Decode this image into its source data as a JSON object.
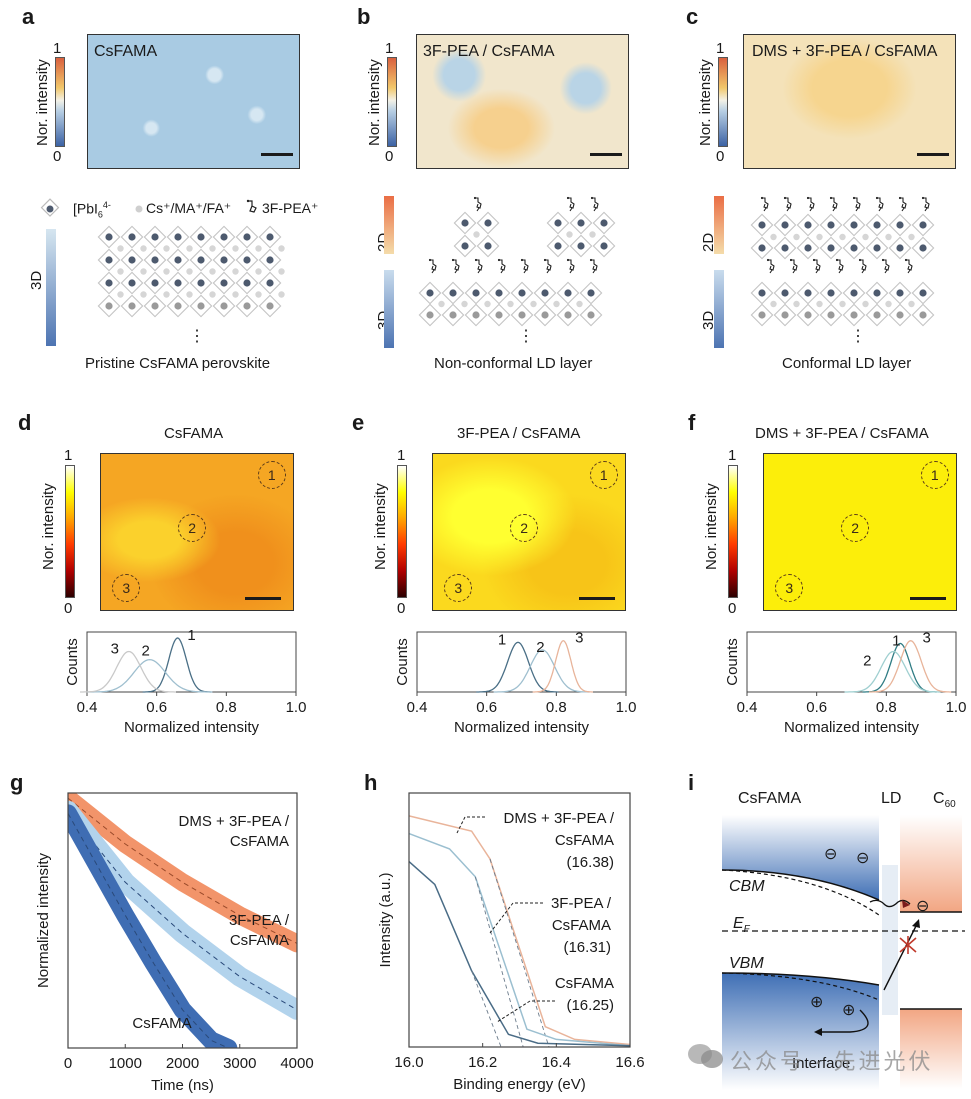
{
  "panels": {
    "a": {
      "label": "a",
      "map_title": "CsFAMA",
      "colorbar_label": "Nor. intensity",
      "colorbar_max": "1",
      "colorbar_min": "0",
      "legend": {
        "pbi6": "[PbI",
        "pbi6_sub": "6",
        "pbi6_sup": "]4-",
        "cations": "Cs⁺/MA⁺/FA⁺",
        "spacer": "3F-PEA⁺"
      },
      "gradient_3d_label": "3D",
      "caption": "Pristine CsFAMA perovskite",
      "ellipsis": "⋮"
    },
    "b": {
      "label": "b",
      "map_title": "3F-PEA / CsFAMA",
      "colorbar_label": "Nor. intensity",
      "colorbar_max": "1",
      "colorbar_min": "0",
      "gradient_2d_label": "2D",
      "gradient_3d_label": "3D",
      "caption": "Non-conformal LD layer",
      "ellipsis": "⋮"
    },
    "c": {
      "label": "c",
      "map_title": "DMS + 3F-PEA / CsFAMA",
      "colorbar_label": "Nor. intensity",
      "colorbar_max": "1",
      "colorbar_min": "0",
      "gradient_2d_label": "2D",
      "gradient_3d_label": "3D",
      "caption": "Conformal LD layer",
      "ellipsis": "⋮"
    },
    "d": {
      "label": "d",
      "title": "CsFAMA",
      "colorbar_label": "Nor. intensity",
      "colorbar_max": "1",
      "colorbar_min": "0",
      "regions": [
        "1",
        "2",
        "3"
      ]
    },
    "e": {
      "label": "e",
      "title": "3F-PEA / CsFAMA",
      "colorbar_label": "Nor. intensity",
      "colorbar_max": "1",
      "colorbar_min": "0",
      "regions": [
        "1",
        "2",
        "3"
      ]
    },
    "f": {
      "label": "f",
      "title": "DMS + 3F-PEA / CsFAMA",
      "colorbar_label": "Nor. intensity",
      "colorbar_max": "1",
      "colorbar_min": "0",
      "regions": [
        "1",
        "2",
        "3"
      ]
    },
    "g": {
      "label": "g"
    },
    "h": {
      "label": "h"
    },
    "i": {
      "label": "i",
      "col_perovskite": "CsFAMA",
      "col_ld": "LD",
      "col_c60": "C",
      "col_c60_sub": "60",
      "cbm": "CBM",
      "vbm": "VBM",
      "ef": "E",
      "ef_sub": "F",
      "interface": "Interface",
      "electron_symbol": "⊖",
      "hole_symbol": "⊕"
    }
  },
  "watermark": {
    "text": "公众号 · 先进光伏"
  },
  "colors": {
    "orange": "#f08a5d",
    "light_blue": "#a8cde8",
    "dark_blue": "#3d6db3",
    "hist_1_d": "#4a6f86",
    "hist_2_d": "#9fbfcf",
    "hist_3_d": "#c8c8c8",
    "hist_orange": "#e8b49a",
    "teal": "#3c8c8c"
  },
  "chart_data": [
    {
      "id": "d-hist",
      "type": "line",
      "title": "",
      "xlabel": "Normalized intensity",
      "ylabel": "Counts",
      "xlim": [
        0.4,
        1.0
      ],
      "xticks": [
        "0.4",
        "0.6",
        "0.8",
        "1.0"
      ],
      "series": [
        {
          "name": "1",
          "peak": 0.66,
          "width": 0.025,
          "height": 1.0
        },
        {
          "name": "2",
          "peak": 0.58,
          "width": 0.045,
          "height": 0.6
        },
        {
          "name": "3",
          "peak": 0.52,
          "width": 0.035,
          "height": 0.75
        }
      ]
    },
    {
      "id": "e-hist",
      "type": "line",
      "xlabel": "Normalized intensity",
      "ylabel": "Counts",
      "xlim": [
        0.4,
        1.0
      ],
      "xticks": [
        "0.4",
        "0.6",
        "0.8",
        "1.0"
      ],
      "series": [
        {
          "name": "1",
          "peak": 0.69,
          "width": 0.03,
          "height": 0.92
        },
        {
          "name": "2",
          "peak": 0.76,
          "width": 0.035,
          "height": 0.78
        },
        {
          "name": "3",
          "peak": 0.82,
          "width": 0.022,
          "height": 0.95
        }
      ]
    },
    {
      "id": "f-hist",
      "type": "line",
      "xlabel": "Normalized intensity",
      "ylabel": "Counts",
      "xlim": [
        0.4,
        1.0
      ],
      "xticks": [
        "0.4",
        "0.6",
        "0.8",
        "1.0"
      ],
      "series": [
        {
          "name": "1",
          "peak": 0.84,
          "width": 0.027,
          "height": 0.9
        },
        {
          "name": "2",
          "peak": 0.82,
          "width": 0.035,
          "height": 0.75
        },
        {
          "name": "3",
          "peak": 0.87,
          "width": 0.03,
          "height": 0.95
        }
      ]
    },
    {
      "id": "g-trpl",
      "type": "line",
      "xlabel": "Time (ns)",
      "ylabel": "Normalized intensity",
      "xlim": [
        0,
        4000
      ],
      "xticks": [
        "0",
        "1000",
        "2000",
        "3000",
        "4000"
      ],
      "ylim": [
        0,
        1
      ],
      "series": [
        {
          "name": "DMS + 3F-PEA / CsFAMA",
          "label_lines": [
            "DMS + 3F-PEA /",
            "CsFAMA"
          ],
          "x": [
            0,
            1000,
            2000,
            3000,
            4000
          ],
          "y": [
            0.98,
            0.8,
            0.65,
            0.52,
            0.41
          ]
        },
        {
          "name": "3F-PEA / CsFAMA",
          "label_lines": [
            "3F-PEA /",
            "CsFAMA"
          ],
          "x": [
            0,
            1000,
            2000,
            3000,
            4000
          ],
          "y": [
            0.93,
            0.65,
            0.45,
            0.28,
            0.15
          ]
        },
        {
          "name": "CsFAMA",
          "label_lines": [
            "CsFAMA"
          ],
          "x": [
            0,
            500,
            1000,
            1500,
            2000,
            2500,
            2800
          ],
          "y": [
            0.92,
            0.72,
            0.52,
            0.33,
            0.15,
            0.03,
            0.0
          ]
        }
      ]
    },
    {
      "id": "h-ups",
      "type": "line",
      "xlabel": "Binding energy (eV)",
      "ylabel": "Intensity (a.u.)",
      "xlim": [
        16.0,
        16.6
      ],
      "xticks": [
        "16.0",
        "16.2",
        "16.4",
        "16.6"
      ],
      "ylim": [
        0,
        1
      ],
      "series": [
        {
          "name": "DMS + 3F-PEA / CsFAMA",
          "label_lines": [
            "DMS + 3F-PEA /",
            "CsFAMA",
            "(16.38)"
          ],
          "cutoff": 16.38,
          "x": [
            16.0,
            16.17,
            16.22,
            16.37,
            16.45,
            16.6
          ],
          "y": [
            0.91,
            0.85,
            0.74,
            0.08,
            0.03,
            0.01
          ]
        },
        {
          "name": "3F-PEA / CsFAMA",
          "label_lines": [
            "3F-PEA /",
            "CsFAMA",
            "(16.31)"
          ],
          "cutoff": 16.31,
          "x": [
            16.0,
            16.11,
            16.18,
            16.32,
            16.4,
            16.6
          ],
          "y": [
            0.84,
            0.78,
            0.67,
            0.07,
            0.03,
            0.005
          ]
        },
        {
          "name": "CsFAMA",
          "label_lines": [
            "CsFAMA",
            "(16.25)"
          ],
          "cutoff": 16.25,
          "x": [
            16.0,
            16.07,
            16.17,
            16.27,
            16.35,
            16.6
          ],
          "y": [
            0.73,
            0.64,
            0.3,
            0.05,
            0.015,
            0.005
          ]
        }
      ]
    }
  ]
}
